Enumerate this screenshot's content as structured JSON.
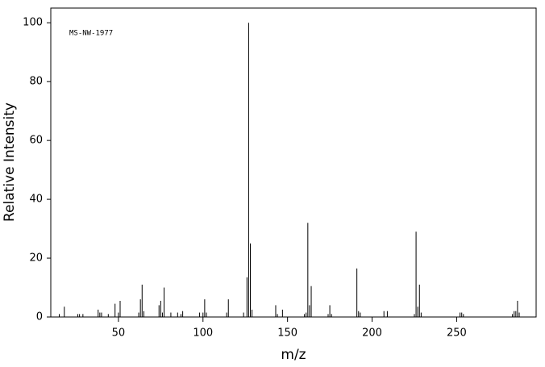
{
  "chart_data": {
    "type": "stem",
    "annotation": "MS-NW-1977",
    "x_label": "m/z",
    "y_label": "Relative Intensity",
    "x": [
      15,
      18,
      26,
      27,
      29,
      38,
      39,
      40,
      44,
      48,
      50,
      51,
      62,
      63,
      64,
      65,
      74,
      75,
      76,
      77,
      81,
      85,
      87,
      88,
      98,
      100,
      101,
      102,
      114,
      115,
      124,
      126,
      127,
      128,
      129,
      143,
      144,
      147,
      160,
      161,
      162,
      163,
      164,
      174,
      175,
      176,
      191,
      192,
      193,
      207,
      209,
      225,
      226,
      227,
      228,
      229,
      252,
      253,
      254,
      283,
      284,
      285,
      286,
      287
    ],
    "values": [
      1,
      3.5,
      1,
      1,
      1,
      2.5,
      1.5,
      1.5,
      1,
      4.5,
      1.5,
      5.5,
      1.5,
      6,
      11,
      2,
      4,
      5.5,
      1.5,
      10,
      1.5,
      1.5,
      1,
      2,
      1.5,
      1.5,
      6,
      1.5,
      1.5,
      6,
      1.5,
      13.5,
      100,
      25,
      2.5,
      4,
      1,
      2.5,
      1,
      1.5,
      32,
      4,
      10.5,
      1,
      4,
      1,
      16.5,
      2,
      1.5,
      2,
      2,
      1,
      29,
      3.5,
      11,
      1.5,
      1.5,
      1.5,
      1,
      1,
      2,
      2,
      5.5,
      1.5
    ],
    "color": "#000000",
    "xlim": [
      10,
      297
    ],
    "ylim": [
      0,
      105
    ],
    "xticks": [
      50,
      100,
      150,
      200,
      250
    ],
    "yticks": [
      0,
      20,
      40,
      60,
      80,
      100
    ]
  }
}
